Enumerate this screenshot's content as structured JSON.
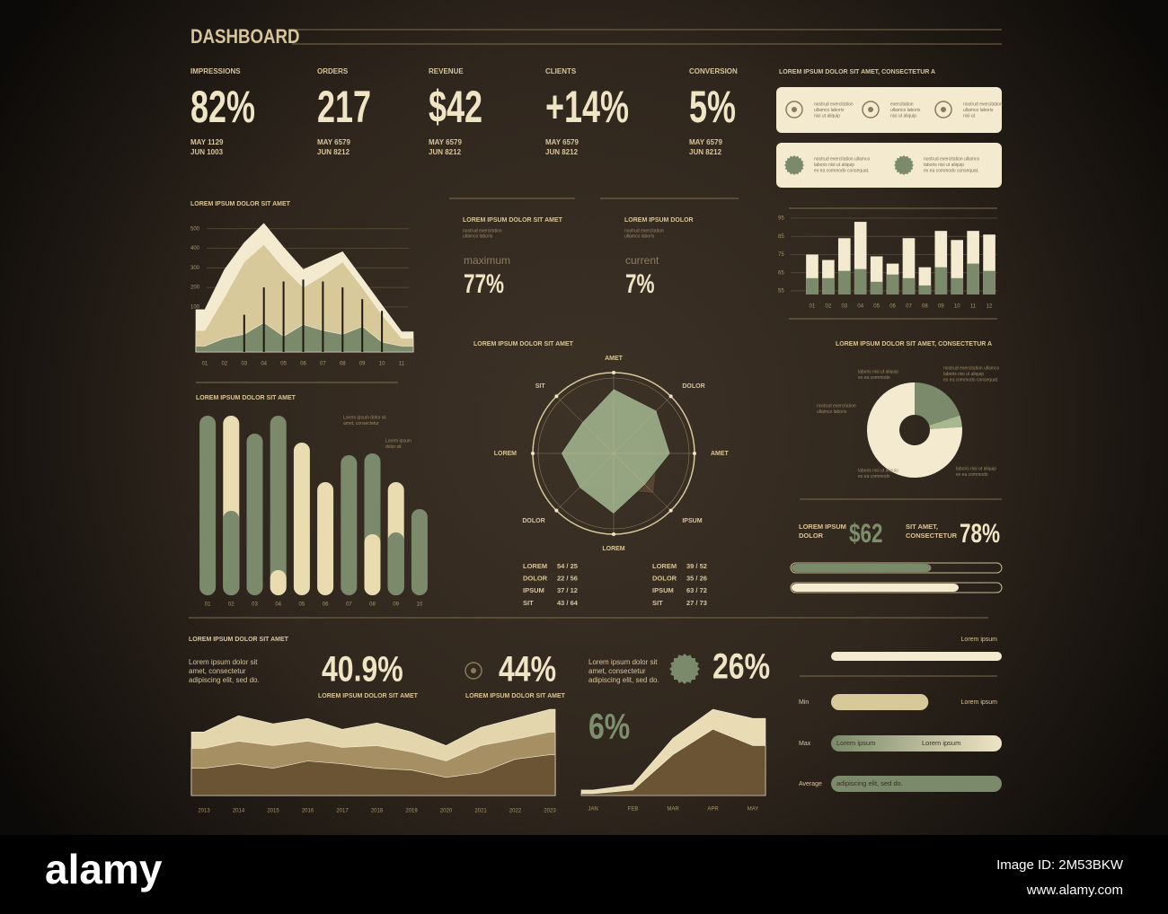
{
  "header": {
    "title": "DASHBOARD"
  },
  "kpis": [
    {
      "label": "IMPRESSIONS",
      "value": "82%",
      "lines": [
        "MAY 1129",
        "JUN 1003"
      ]
    },
    {
      "label": "ORDERS",
      "value": "217",
      "lines": [
        "MAY 6579",
        "JUN 8212"
      ]
    },
    {
      "label": "REVENUE",
      "value": "$42",
      "lines": [
        "MAY 6579",
        "JUN 8212"
      ]
    },
    {
      "label": "CLIENTS",
      "value": "+14%",
      "lines": [
        "MAY 6579",
        "JUN 8212"
      ]
    },
    {
      "label": "CONVERSION",
      "value": "5%",
      "lines": [
        "MAY 6579",
        "JUN 8212"
      ]
    }
  ],
  "info_panel": {
    "title": "LOREM IPSUM DOLOR SIT AMET, CONSECTETUR A",
    "card1": [
      [
        "nostrud exercitation",
        "ullamco laboris",
        "nisi ut aliquip"
      ],
      [
        "exercitation",
        "ullamco laboris",
        "nisi ut aliquip"
      ],
      [
        "nostrud exercitation",
        "ullamco laboris",
        "nisi ut"
      ]
    ],
    "card2": [
      [
        "nostrud exercitation ullamco",
        "laboris nisi ut aliquip",
        "ex ea commodo consequat."
      ],
      [
        "nostrud exercitation ullamco",
        "laboris nisi ut aliquip",
        "ex ea commodo consequat."
      ]
    ]
  },
  "metrics": [
    {
      "title": "LOREM IPSUM DOLOR SIT AMET",
      "note": [
        "nostrud exercitation",
        "ullamco laboris"
      ],
      "label": "maximum",
      "value": "77%"
    },
    {
      "title": "LOREM IPSUM DOLOR",
      "note": [
        "nostrud exercitation",
        "ullamco laboris"
      ],
      "label": "current",
      "value": "7%"
    }
  ],
  "radar_table": [
    [
      [
        "LOREM",
        "54 / 25"
      ],
      [
        "DOLOR",
        "22 / 56"
      ],
      [
        "IPSUM",
        "37 / 12"
      ],
      [
        "SIT",
        "43 / 64"
      ]
    ],
    [
      [
        "LOREM",
        "39 / 52"
      ],
      [
        "DOLOR",
        "35 / 26"
      ],
      [
        "IPSUM",
        "63 / 72"
      ],
      [
        "SIT",
        "27 / 73"
      ]
    ]
  ],
  "stats": {
    "label1": [
      "LOREM IPSUM",
      "DOLOR"
    ],
    "value1": "$62",
    "label2": [
      "SIT AMET,",
      "CONSECTETUR"
    ],
    "value2": "78%"
  },
  "bottom": {
    "title": "LOREM IPSUM DOLOR SIT AMET",
    "para1": [
      "Lorem ipsum dolor sit",
      "amet, consectetur",
      "adipiscing elit, sed do."
    ],
    "value1": "40.9%",
    "caption1": "LOREM IPSUM DOLOR SIT AMET",
    "value2": "44%",
    "caption2": "LOREM IPSUM DOLOR SIT AMET",
    "para2": [
      "Lorem ipsum dolor sit",
      "amet, consectetur",
      "adipiscing elit, sed do."
    ],
    "value3": "26%",
    "value4": "6%"
  },
  "ranges": {
    "top_right": "Lorem ipsum",
    "min_right": "Lorem ipsum",
    "max_inner": [
      "Lorem ipsum",
      "Lorem ipsum"
    ],
    "average_inner": "adipiscing elit, sed do."
  },
  "footer": {
    "brand": "alamy",
    "image_id": "Image ID: 2M53BKW",
    "url": "www.alamy.com"
  },
  "chart_data": [
    {
      "type": "area",
      "title": "LOREM IPSUM DOLOR SIT AMET",
      "categories": [
        "01",
        "02",
        "03",
        "04",
        "05",
        "06",
        "07",
        "08",
        "09",
        "10",
        "11"
      ],
      "ylim": [
        -130,
        540
      ],
      "yticks": [
        500,
        400,
        300,
        200,
        100
      ],
      "series": [
        {
          "color": "#f3ead0",
          "values": [
            86,
            291,
            428,
            527,
            405,
            291,
            337,
            382,
            246,
            109,
            -27
          ]
        },
        {
          "color": "#d8c99a",
          "values": [
            -20,
            150,
            330,
            420,
            300,
            200,
            260,
            330,
            200,
            60,
            -60
          ]
        },
        {
          "color": "#7a8a6a",
          "values": [
            -100,
            -60,
            -40,
            20,
            -50,
            10,
            -20,
            -40,
            0,
            -80,
            -100
          ]
        },
        {
          "color": "#1e1812",
          "style": "stem",
          "values": [
            null,
            null,
            60,
            200,
            230,
            240,
            230,
            200,
            140,
            80,
            null
          ]
        }
      ]
    },
    {
      "type": "bar",
      "categories": [
        "01",
        "02",
        "03",
        "04",
        "05",
        "06",
        "07",
        "08",
        "09",
        "10",
        "11",
        "12"
      ],
      "ylim": [
        53,
        96
      ],
      "yticks": [
        95,
        85,
        75,
        65,
        55
      ],
      "series": [
        {
          "color": "#f3ead0",
          "values": [
            75,
            72,
            84,
            93,
            74,
            70,
            84,
            68,
            88,
            83,
            88,
            86
          ]
        },
        {
          "color": "#7a8a6a",
          "values": [
            62,
            62,
            66,
            67,
            60,
            64,
            62,
            58,
            68,
            62,
            70,
            66
          ]
        }
      ]
    },
    {
      "type": "radar",
      "title": "LOREM IPSUM DOLOR SIT AMET",
      "categories": [
        "AMET",
        "DOLOR",
        "AMET",
        "IPSUM",
        "LOREM",
        "DOLOR",
        "LOREM",
        "SIT"
      ],
      "rlim": [
        0,
        100
      ],
      "series": [
        {
          "color": "#5a4632",
          "values": [
            60,
            50,
            55,
            70,
            45,
            55,
            60,
            45
          ]
        },
        {
          "color": "#9aab86",
          "values": [
            80,
            75,
            70,
            55,
            75,
            60,
            65,
            55
          ]
        }
      ]
    },
    {
      "type": "pill",
      "title": "LOREM IPSUM DOLOR SIT AMET",
      "categories": [
        "01",
        "02",
        "03",
        "04",
        "05",
        "06",
        "07",
        "08",
        "09",
        "10"
      ],
      "ylim": [
        0,
        100
      ],
      "annotations": [
        [
          "Lorem ipsum dolor sit",
          "amet, consectetur"
        ],
        [
          "Lorem ipsum",
          "dolor sit"
        ]
      ],
      "series": [
        {
          "color": "#7a8a6a",
          "values": [
            100,
            47,
            90,
            100,
            null,
            null,
            78,
            79,
            35,
            48
          ]
        },
        {
          "color": "#e9dcb0",
          "values": [
            null,
            100,
            null,
            14,
            85,
            63,
            null,
            34,
            63,
            null
          ]
        }
      ]
    },
    {
      "type": "pie",
      "title": "LOREM IPSUM DOLOR SIT AMET, CONSECTETUR A",
      "values": [
        20,
        4,
        76
      ],
      "colors": [
        "#7a8a6a",
        "#a9b98f",
        "#f3ead0"
      ],
      "annotations": [
        [
          "nostrud exercitation ullamco",
          "laboris nisi ut aliquip",
          "ex ea commodo consequat."
        ],
        [
          "laboris nisi ut aliquip",
          "ex ea commodo"
        ],
        [
          "nostrud exercitation",
          "ullamco laboris"
        ],
        [
          "laboris nisi ut aliquip",
          "ex ea commodo"
        ],
        [
          "laboris nisi ut aliquip",
          "ex ea commodo"
        ]
      ]
    },
    {
      "type": "progress",
      "xlim": [
        0,
        100
      ],
      "track": true,
      "values": [
        67,
        80
      ],
      "colors": [
        "#7a8a6a",
        "#f3ead0"
      ]
    },
    {
      "type": "area",
      "categories": [
        "2013",
        "2014",
        "2015",
        "2016",
        "2017",
        "2018",
        "2019",
        "2020",
        "2021",
        "2022",
        "2023"
      ],
      "ylim": [
        0,
        100
      ],
      "series": [
        {
          "color": "#e3d6ad",
          "values": [
            70,
            88,
            79,
            85,
            73,
            80,
            70,
            55,
            75,
            85,
            95
          ]
        },
        {
          "color": "#a58f63",
          "values": [
            52,
            60,
            55,
            60,
            53,
            55,
            48,
            38,
            55,
            62,
            70
          ]
        },
        {
          "color": "#6a5434",
          "values": [
            30,
            35,
            30,
            38,
            35,
            30,
            28,
            20,
            25,
            40,
            45
          ]
        }
      ]
    },
    {
      "type": "area",
      "categories": [
        "JAN",
        "FEB",
        "MAR",
        "APR",
        "MAY"
      ],
      "ylim": [
        0,
        100
      ],
      "series": [
        {
          "color": "#e9dcb5",
          "values": [
            6,
            12,
            63,
            95,
            85
          ]
        },
        {
          "color": "#6a5434",
          "values": [
            2,
            6,
            45,
            73,
            55
          ]
        }
      ]
    },
    {
      "type": "progress",
      "xlim": [
        0,
        100
      ],
      "track": false,
      "categories": [
        null,
        "Min",
        "Max",
        "Average"
      ],
      "values": [
        100,
        57,
        100,
        100
      ],
      "colors": [
        "#f3ead0",
        "#d8c99a",
        "#9aab86",
        "#7a8a6a"
      ]
    }
  ]
}
